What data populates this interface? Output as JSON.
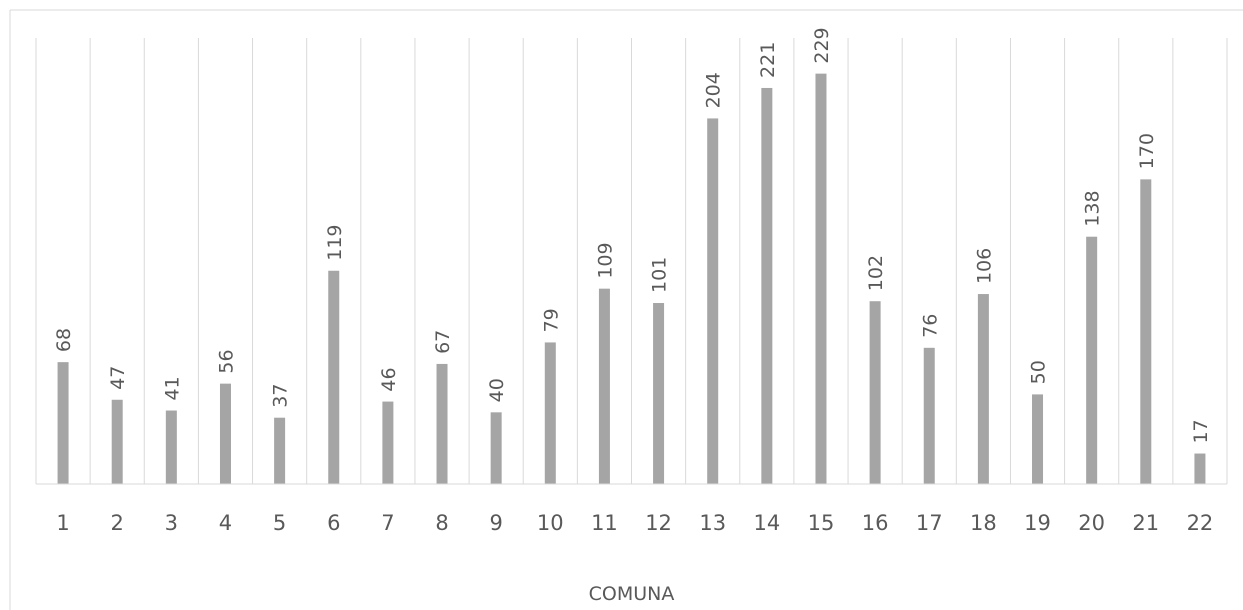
{
  "chart_data": {
    "type": "bar",
    "categories": [
      "1",
      "2",
      "3",
      "4",
      "5",
      "6",
      "7",
      "8",
      "9",
      "10",
      "11",
      "12",
      "13",
      "14",
      "15",
      "16",
      "17",
      "18",
      "19",
      "20",
      "21",
      "22"
    ],
    "values": [
      68,
      47,
      41,
      56,
      37,
      119,
      46,
      67,
      40,
      79,
      109,
      101,
      204,
      221,
      229,
      102,
      76,
      106,
      50,
      138,
      170,
      17
    ],
    "title": "",
    "xlabel": "COMUNA",
    "ylabel": "",
    "ylim": [
      0,
      250
    ],
    "grid": "vertical",
    "legend": "none",
    "colors": {
      "bar": "#a5a5a5",
      "grid": "#d9d9d9",
      "axis": "#d9d9d9",
      "text": "#595959"
    }
  }
}
